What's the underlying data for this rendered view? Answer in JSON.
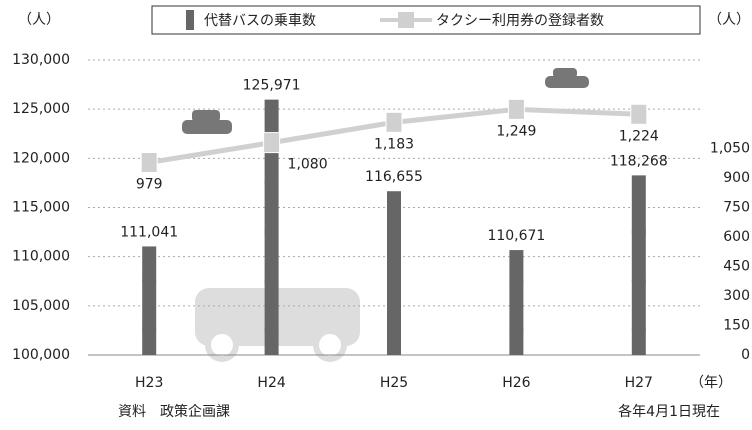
{
  "chart_data": {
    "type": "bar-line",
    "y_unit_label": "（人）",
    "y2_unit_label": "（人）",
    "x_unit_label": "（年）",
    "source": "資料　政策企画課",
    "note": "各年4月1日現在",
    "categories": [
      "H23",
      "H24",
      "H25",
      "H26",
      "H27"
    ],
    "series": [
      {
        "name": "代替バスの乗車数",
        "type": "bar",
        "color": "#666666",
        "values": [
          111041,
          125971,
          116655,
          110671,
          118268
        ],
        "value_labels": [
          "111,041",
          "125,971",
          "116,655",
          "110,671",
          "118,268"
        ]
      },
      {
        "name": "タクシー利用券の登録者数",
        "type": "line",
        "axis": "y2",
        "color": "#d0d0d0",
        "values": [
          979,
          1080,
          1183,
          1249,
          1224
        ],
        "value_labels": [
          "979",
          "1,080",
          "1,183",
          "1,249",
          "1,224"
        ]
      }
    ],
    "ylim": [
      100000,
      130000
    ],
    "yticks": [
      {
        "value": 100000,
        "label": "100,000"
      },
      {
        "value": 105000,
        "label": "105,000"
      },
      {
        "value": 110000,
        "label": "110,000"
      },
      {
        "value": 115000,
        "label": "115,000"
      },
      {
        "value": 120000,
        "label": "120,000"
      },
      {
        "value": 125000,
        "label": "125,000"
      },
      {
        "value": 130000,
        "label": "130,000"
      }
    ],
    "y2lim": [
      0,
      1500
    ],
    "y2ticks": [
      0,
      150,
      300,
      450,
      600,
      750,
      900,
      {
        "value": 1050,
        "label": "1,050"
      }
    ],
    "grid": true
  }
}
